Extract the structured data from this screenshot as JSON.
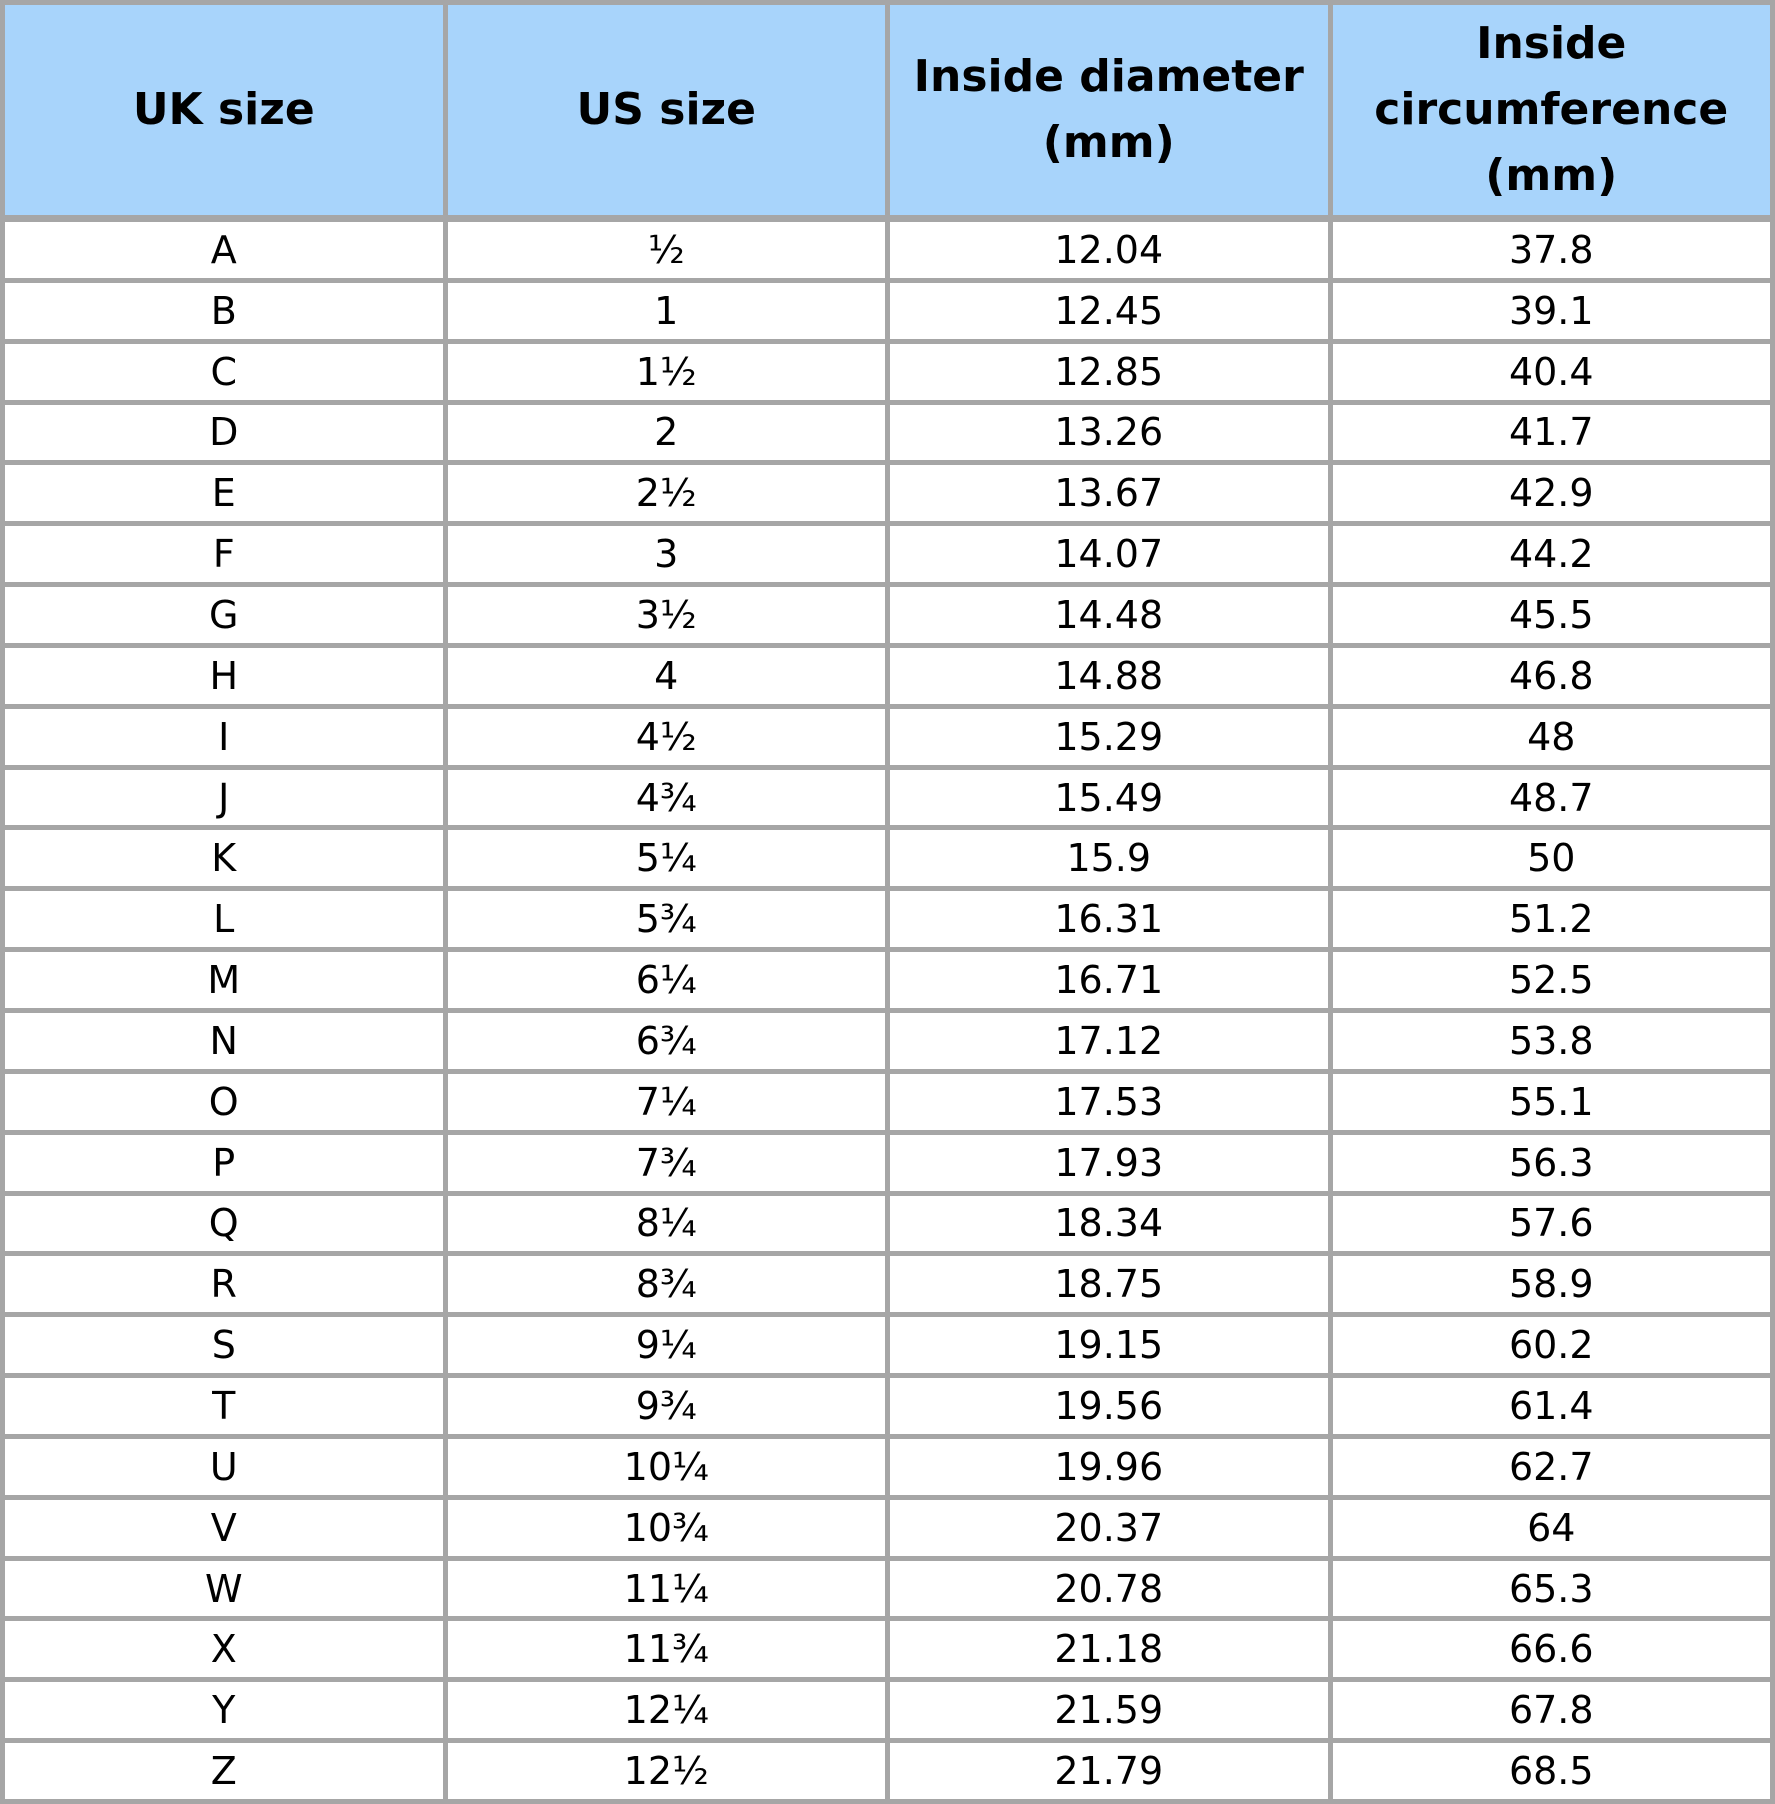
{
  "table": {
    "headers": [
      "UK size",
      "US size",
      "Inside diameter (mm)",
      "Inside circumference (mm)"
    ],
    "colors": {
      "header_bg": "#a8d4fb",
      "border": "#a6a6a6"
    },
    "rows": [
      [
        "A",
        "½",
        "12.04",
        "37.8"
      ],
      [
        "B",
        "1",
        "12.45",
        "39.1"
      ],
      [
        "C",
        "1½",
        "12.85",
        "40.4"
      ],
      [
        "D",
        "2",
        "13.26",
        "41.7"
      ],
      [
        "E",
        "2½",
        "13.67",
        "42.9"
      ],
      [
        "F",
        "3",
        "14.07",
        "44.2"
      ],
      [
        "G",
        "3½",
        "14.48",
        "45.5"
      ],
      [
        "H",
        "4",
        "14.88",
        "46.8"
      ],
      [
        "I",
        "4½",
        "15.29",
        "48"
      ],
      [
        "J",
        "4¾",
        "15.49",
        "48.7"
      ],
      [
        "K",
        "5¼",
        "15.9",
        "50"
      ],
      [
        "L",
        "5¾",
        "16.31",
        "51.2"
      ],
      [
        "M",
        "6¼",
        "16.71",
        "52.5"
      ],
      [
        "N",
        "6¾",
        "17.12",
        "53.8"
      ],
      [
        "O",
        "7¼",
        "17.53",
        "55.1"
      ],
      [
        "P",
        "7¾",
        "17.93",
        "56.3"
      ],
      [
        "Q",
        "8¼",
        "18.34",
        "57.6"
      ],
      [
        "R",
        "8¾",
        "18.75",
        "58.9"
      ],
      [
        "S",
        "9¼",
        "19.15",
        "60.2"
      ],
      [
        "T",
        "9¾",
        "19.56",
        "61.4"
      ],
      [
        "U",
        "10¼",
        "19.96",
        "62.7"
      ],
      [
        "V",
        "10¾",
        "20.37",
        "64"
      ],
      [
        "W",
        "11¼",
        "20.78",
        "65.3"
      ],
      [
        "X",
        "11¾",
        "21.18",
        "66.6"
      ],
      [
        "Y",
        "12¼",
        "21.59",
        "67.8"
      ],
      [
        "Z",
        "12½",
        "21.79",
        "68.5"
      ]
    ]
  }
}
